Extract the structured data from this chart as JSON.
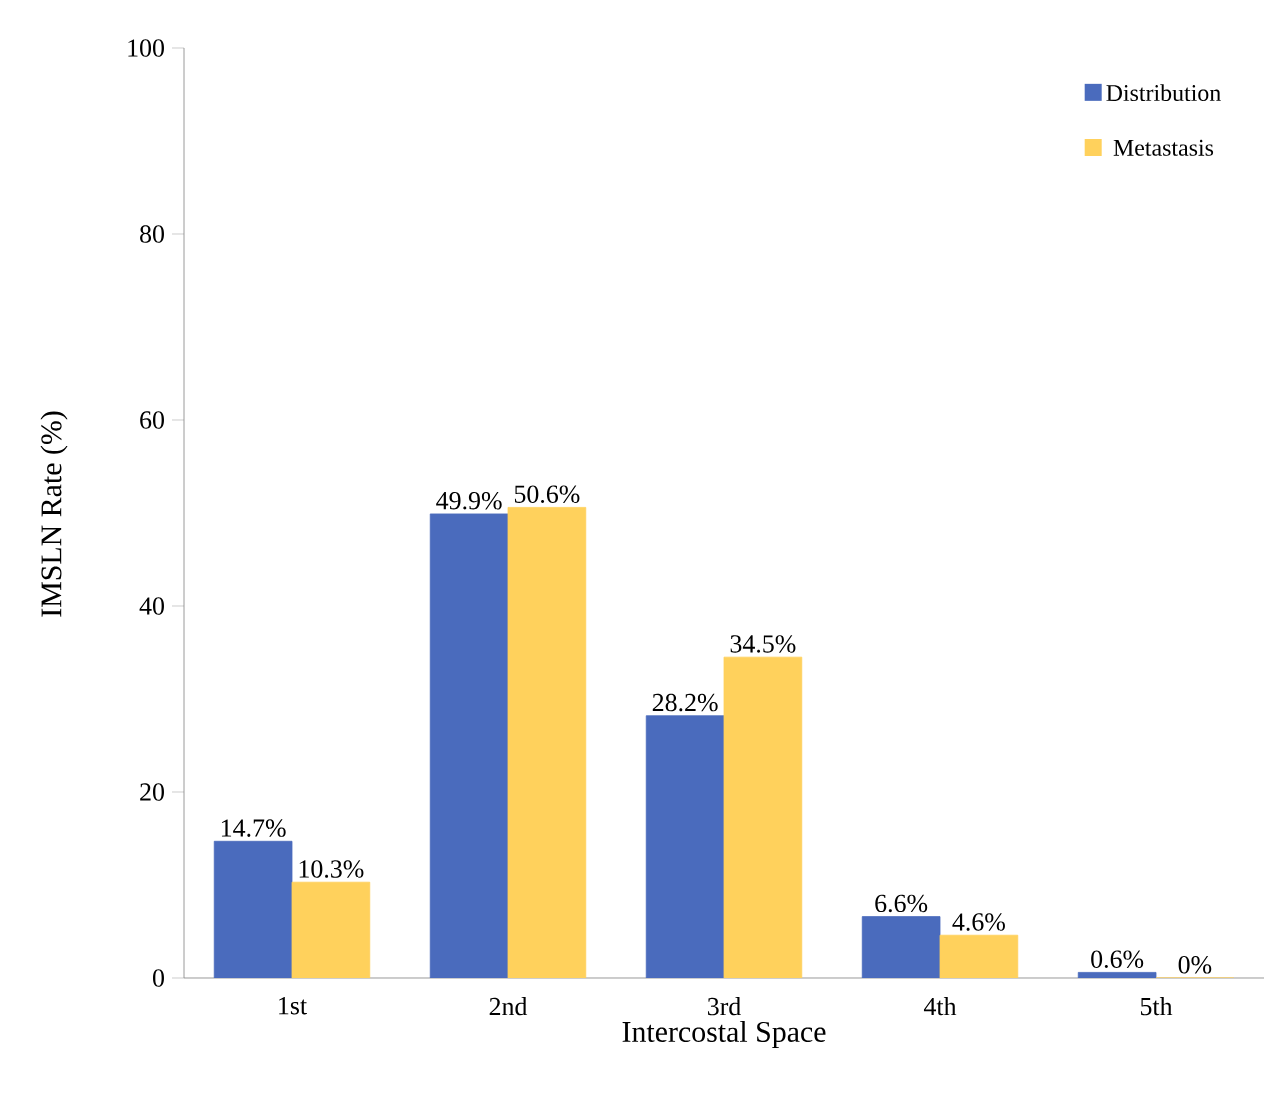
{
  "chart_data": {
    "type": "bar",
    "xlabel": "Intercostal Space",
    "ylabel": "IMSLN Rate (%)",
    "categories": [
      "1st",
      "2nd",
      "3rd",
      "4th",
      "5th"
    ],
    "series": [
      {
        "name": "Distribution",
        "color": "#4a6bbd",
        "values": [
          14.7,
          49.9,
          28.2,
          6.6,
          0.6
        ],
        "value_labels": [
          "14.7%",
          "49.9%",
          "28.2%",
          "6.6%",
          "0.6%"
        ]
      },
      {
        "name": "Metastasis",
        "color": "#ffd15c",
        "values": [
          10.3,
          50.6,
          34.5,
          4.6,
          0
        ],
        "value_labels": [
          "10.3%",
          "50.6%",
          "34.5%",
          "4.6%",
          "0%"
        ]
      }
    ],
    "ylim": [
      0,
      100
    ],
    "yticks": [
      0,
      20,
      40,
      60,
      80,
      100
    ],
    "grid": false,
    "legend": "top right"
  }
}
